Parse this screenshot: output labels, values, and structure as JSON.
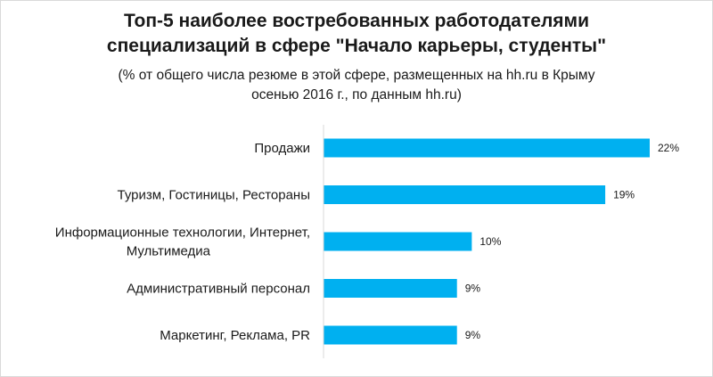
{
  "title_lines": [
    "Топ-5 наиболее востребованных работодателями",
    "специализаций  в сфере \"Начало карьеры, студенты\""
  ],
  "subtitle_lines": [
    "(% от общего числа резюме в этой сфере, размещенных на hh.ru в Крыму",
    "осенью 2016 г., по данным hh.ru)"
  ],
  "colors": {
    "bar": "#00B0F0"
  },
  "chart_data": {
    "type": "bar",
    "orientation": "horizontal",
    "title": "Топ-5 наиболее востребованных работодателями специализаций  в сфере \"Начало карьеры, студенты\"",
    "subtitle": "(% от общего числа резюме в этой сфере, размещенных на hh.ru в Крыму осенью 2016 г., по данным hh.ru)",
    "categories": [
      [
        "Продажи"
      ],
      [
        "Туризм, Гостиницы, Рестораны"
      ],
      [
        "Информационные технологии, Интернет,",
        "Мультимедиа"
      ],
      [
        "Административный персонал"
      ],
      [
        "Маркетинг, Реклама, PR"
      ]
    ],
    "values": [
      22,
      19,
      10,
      9,
      9
    ],
    "value_labels": [
      "22%",
      "19%",
      "10%",
      "9%",
      "9%"
    ],
    "xlim": [
      0,
      22
    ],
    "grid": false,
    "legend": "none"
  }
}
